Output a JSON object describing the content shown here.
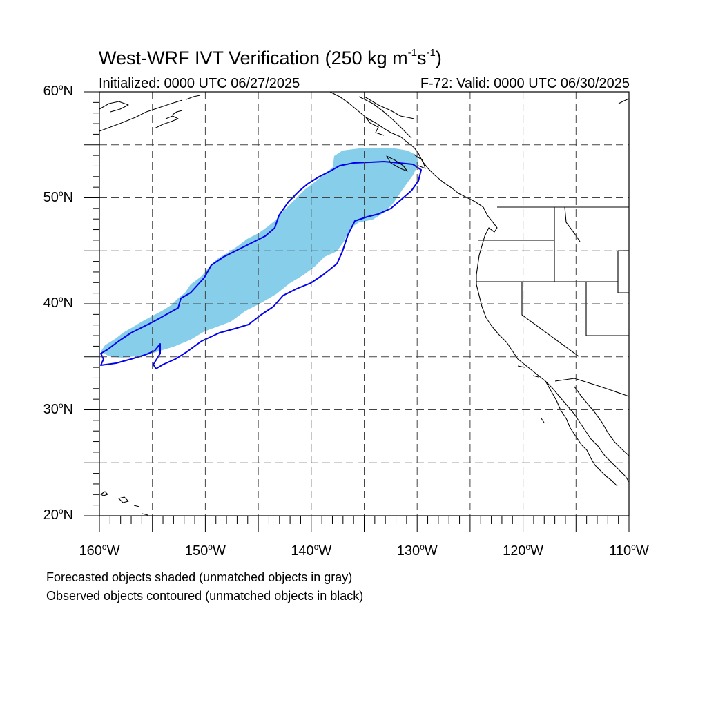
{
  "title": {
    "main": "West-WRF IVT Verification (250 kg m",
    "exp1": "-1",
    "mid": "s",
    "exp2": "-1",
    "close": ")"
  },
  "subtitle_left": "Initialized: 0000 UTC 06/27/2025",
  "subtitle_right": "F-72: Valid: 0000 UTC 06/30/2025",
  "lat_labels": [
    {
      "value": "60",
      "unit": "N"
    },
    {
      "value": "50",
      "unit": "N"
    },
    {
      "value": "40",
      "unit": "N"
    },
    {
      "value": "30",
      "unit": "N"
    },
    {
      "value": "20",
      "unit": "N"
    }
  ],
  "lon_labels": [
    {
      "value": "160",
      "unit": "W"
    },
    {
      "value": "150",
      "unit": "W"
    },
    {
      "value": "140",
      "unit": "W"
    },
    {
      "value": "130",
      "unit": "W"
    },
    {
      "value": "120",
      "unit": "W"
    },
    {
      "value": "110",
      "unit": "W"
    }
  ],
  "degree_symbol": "o",
  "notes": [
    "Forecasted objects shaded (unmatched objects in gray)",
    "Observed objects contoured (unmatched objects in black)"
  ],
  "map": {
    "lat_range": [
      20,
      60
    ],
    "lon_range": [
      -160,
      -110
    ],
    "grid_spacing_deg": 5,
    "forecast_fill_color": "#87ceeb",
    "observed_contour_color": "#0000ee",
    "coastline_color": "#000000"
  }
}
